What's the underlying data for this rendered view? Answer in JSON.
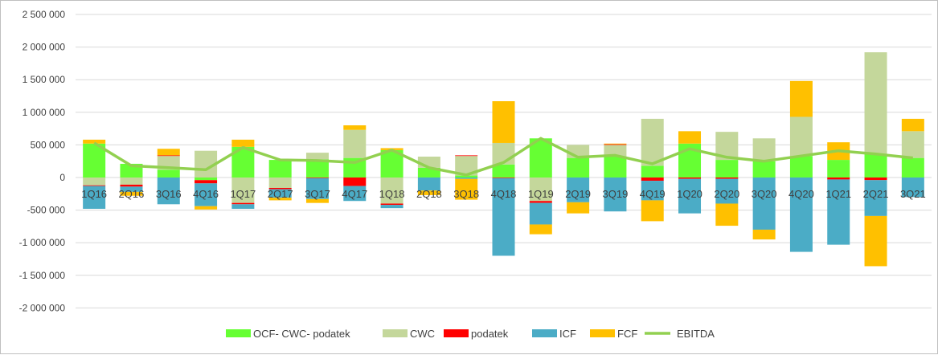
{
  "chart_data": {
    "type": "bar",
    "stacked": true,
    "ylim": [
      -2000000,
      2500000
    ],
    "y_tick_step": 500000,
    "y_tick_labels": [
      "-2 000 000",
      "-1 500 000",
      "-1 000 000",
      "-500 000",
      "0",
      "500 000",
      "1 000 000",
      "1 500 000",
      "2 000 000",
      "2 500 000"
    ],
    "grid": true,
    "legend_position": "bottom",
    "categories": [
      "1Q16",
      "2Q16",
      "3Q16",
      "4Q16",
      "1Q17",
      "2Q17",
      "3Q17",
      "4Q17",
      "1Q18",
      "2Q18",
      "3Q18",
      "4Q18",
      "1Q19",
      "2Q19",
      "3Q19",
      "4Q19",
      "1Q20",
      "2Q20",
      "3Q20",
      "4Q20",
      "1Q21",
      "2Q21",
      "3Q21"
    ],
    "series": [
      {
        "name": "OCF- CWC- podatek",
        "color": "#66ff33",
        "values": [
          520000,
          210000,
          120000,
          -40000,
          470000,
          270000,
          280000,
          300000,
          420000,
          150000,
          30000,
          200000,
          600000,
          300000,
          320000,
          180000,
          520000,
          270000,
          250000,
          330000,
          270000,
          360000,
          300000
        ]
      },
      {
        "name": "CWC",
        "color": "#c4d79b",
        "values": [
          -120000,
          -110000,
          210000,
          410000,
          -390000,
          -160000,
          100000,
          430000,
          -400000,
          170000,
          300000,
          330000,
          -360000,
          200000,
          180000,
          720000,
          0,
          430000,
          350000,
          600000,
          0,
          1560000,
          410000
        ]
      },
      {
        "name": "podatek",
        "color": "#ff0000",
        "values": [
          -10000,
          -30000,
          10000,
          -50000,
          -20000,
          -20000,
          -10000,
          -130000,
          -20000,
          0,
          10000,
          -10000,
          -30000,
          0,
          10000,
          -50000,
          -20000,
          -20000,
          0,
          0,
          -30000,
          -40000,
          0
        ]
      },
      {
        "name": "ICF",
        "color": "#4bacc6",
        "values": [
          -350000,
          -80000,
          -410000,
          -350000,
          -70000,
          -130000,
          -320000,
          -230000,
          -50000,
          -200000,
          -20000,
          -1190000,
          -330000,
          -380000,
          -520000,
          -300000,
          -530000,
          -380000,
          -800000,
          -1140000,
          -1000000,
          -550000,
          -300000
        ]
      },
      {
        "name": "FCF",
        "color": "#ffc000",
        "values": [
          60000,
          -60000,
          100000,
          -50000,
          110000,
          -40000,
          -60000,
          70000,
          30000,
          -70000,
          -320000,
          640000,
          -150000,
          -170000,
          10000,
          -320000,
          190000,
          -340000,
          -150000,
          550000,
          270000,
          -770000,
          190000
        ]
      },
      {
        "name": "EBITDA",
        "color": "#92d050",
        "type": "line",
        "values": [
          530000,
          180000,
          150000,
          120000,
          460000,
          270000,
          260000,
          230000,
          420000,
          150000,
          40000,
          230000,
          600000,
          310000,
          340000,
          210000,
          440000,
          310000,
          250000,
          330000,
          410000,
          360000,
          300000
        ]
      }
    ]
  }
}
